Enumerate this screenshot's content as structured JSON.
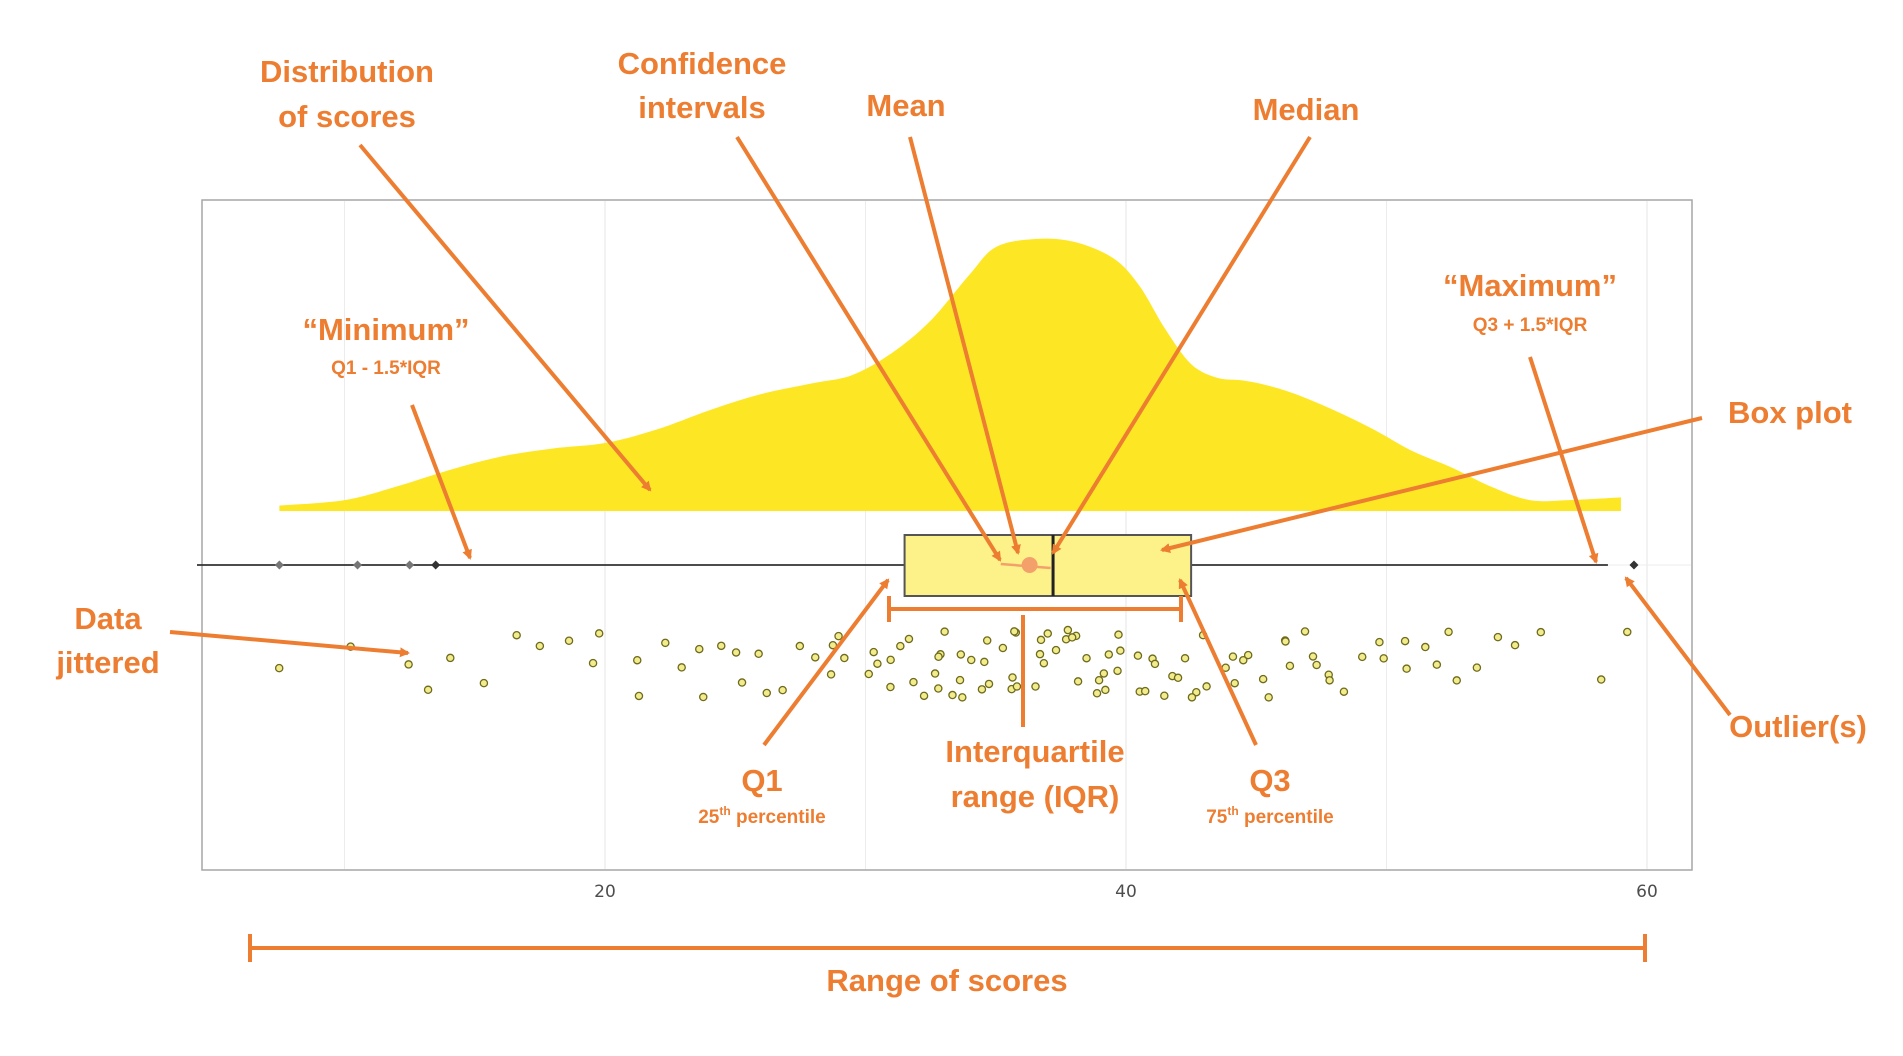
{
  "chart_data": {
    "type": "raincloud",
    "xlim": [
      5,
      62
    ],
    "x_ticks": [
      20,
      40,
      60
    ],
    "x_tick_labels": [
      "20",
      "40",
      "60"
    ],
    "box": {
      "q1": 31.5,
      "median": 37.2,
      "q3": 42.5,
      "whisker_low": 15,
      "whisker_high": 58.5,
      "mean": 36.3,
      "ci_low": 35.5,
      "ci_high": 36.8
    },
    "outliers": [
      7.5,
      10.5,
      12.5,
      13.5,
      59.5
    ],
    "density": {
      "x": [
        7.5,
        10,
        12,
        14,
        16,
        18,
        20,
        22,
        24,
        26,
        28,
        29.5,
        31,
        32.5,
        34,
        35,
        36.5,
        38,
        39.5,
        40.5,
        41.5,
        42.5,
        43.5,
        44.5,
        45.5,
        46.5,
        48,
        49.5,
        51,
        52.5,
        54,
        55.5,
        57,
        59
      ],
      "y": [
        0.02,
        0.04,
        0.09,
        0.15,
        0.2,
        0.23,
        0.25,
        0.3,
        0.37,
        0.43,
        0.47,
        0.5,
        0.58,
        0.7,
        0.87,
        0.97,
        1.0,
        0.99,
        0.93,
        0.83,
        0.67,
        0.54,
        0.49,
        0.48,
        0.46,
        0.43,
        0.37,
        0.3,
        0.22,
        0.16,
        0.09,
        0.04,
        0.04,
        0.05
      ]
    },
    "jitter": [
      7.5,
      10.5,
      12.5,
      13.5,
      14,
      15.5,
      16.5,
      17.5,
      18.5,
      19.5,
      20,
      21,
      21.5,
      22,
      23,
      23.5,
      24,
      24.5,
      25,
      25.5,
      26,
      26.5,
      27,
      27.5,
      28,
      28.5,
      29,
      29,
      29.5,
      30,
      30,
      30.5,
      31,
      31,
      31.5,
      31.5,
      32,
      32,
      32.5,
      32.5,
      33,
      33,
      33,
      33.5,
      33.5,
      34,
      34,
      34,
      34.5,
      34.5,
      35,
      35,
      35,
      35.5,
      35.5,
      36,
      36,
      36,
      36.5,
      36.5,
      37,
      37,
      37,
      37.5,
      37.5,
      38,
      38,
      38,
      38.5,
      38.5,
      39,
      39,
      39,
      39.5,
      39.5,
      40,
      40,
      40,
      40.5,
      40.5,
      41,
      41,
      41,
      41.5,
      41.5,
      42,
      42,
      42.5,
      42.5,
      43,
      43,
      43.5,
      44,
      44,
      44.5,
      45,
      45,
      45.5,
      46,
      46,
      46.5,
      47,
      47,
      47.5,
      48,
      48,
      48.5,
      49,
      49.5,
      50,
      50.5,
      51,
      51.5,
      52,
      52.5,
      53,
      53.5,
      54,
      55,
      56,
      58.5,
      59
    ],
    "annotations": {
      "distribution": [
        "Distribution",
        "of scores"
      ],
      "ci": [
        "Confidence",
        "intervals"
      ],
      "mean": "Mean",
      "median": "Median",
      "minimum": "“Minimum”",
      "minimum_formula": "Q1 - 1.5*IQR",
      "maximum": "“Maximum”",
      "maximum_formula": "Q3 + 1.5*IQR",
      "box_plot": "Box plot",
      "data_jittered": [
        "Data",
        "jittered"
      ],
      "q1": "Q1",
      "q1_pct_num": "25",
      "q1_pct_sup": "th",
      "q1_pct_text": " percentile",
      "iqr": [
        "Interquartile",
        "range (IQR)"
      ],
      "q3": "Q3",
      "q3_pct_num": "75",
      "q3_pct_sup": "th",
      "q3_pct_text": " percentile",
      "outliers": "Outlier(s)",
      "range": "Range of scores"
    }
  },
  "colors": {
    "accent": "#ED7D31",
    "density_fill": "#FDE725",
    "box_fill": "#FDF18A",
    "box_stroke": "#555555",
    "point_stroke": "#6E6A1E",
    "point_fill": "#F2EC8C",
    "mean_dot": "#F4A06A",
    "panel_border": "#a6a6a6",
    "grid": "#ececec"
  }
}
